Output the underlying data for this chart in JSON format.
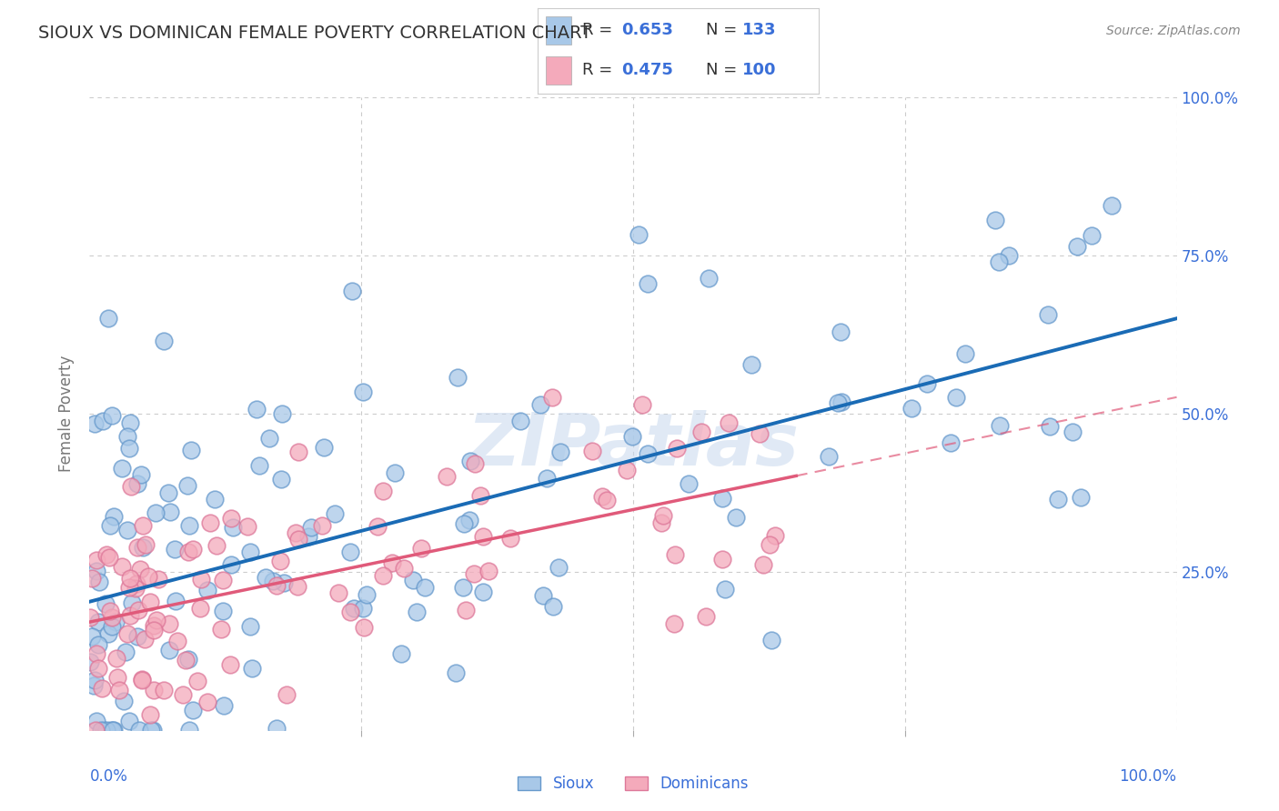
{
  "title": "SIOUX VS DOMINICAN FEMALE POVERTY CORRELATION CHART",
  "source": "Source: ZipAtlas.com",
  "ylabel": "Female Poverty",
  "sioux_color": "#a8c8e8",
  "sioux_edge_color": "#6699cc",
  "dominican_color": "#f4aabb",
  "dominican_edge_color": "#dd7799",
  "sioux_line_color": "#1a6bb5",
  "dominican_line_color": "#e05a7a",
  "pink_dash_color": "#f4aabb",
  "sioux_R": 0.653,
  "sioux_N": 133,
  "dominican_R": 0.475,
  "dominican_N": 100,
  "legend_value_color": "#3a6fd8",
  "watermark_color": "#c8d8ee",
  "background_color": "#ffffff",
  "grid_color": "#cccccc",
  "title_color": "#333333",
  "axis_tick_color": "#3a6fd8",
  "axis_label_color": "#777777",
  "legend_text_color": "#333333"
}
